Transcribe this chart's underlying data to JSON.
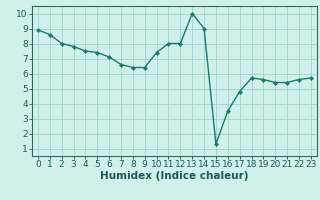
{
  "x": [
    0,
    1,
    2,
    3,
    4,
    5,
    6,
    7,
    8,
    9,
    10,
    11,
    12,
    13,
    14,
    15,
    16,
    17,
    18,
    19,
    20,
    21,
    22,
    23
  ],
  "y": [
    8.9,
    8.6,
    8.0,
    7.8,
    7.5,
    7.4,
    7.1,
    6.6,
    6.4,
    6.4,
    7.4,
    8.0,
    8.0,
    10.0,
    9.0,
    1.3,
    3.5,
    4.8,
    5.7,
    5.6,
    5.4,
    5.4,
    5.6,
    5.7
  ],
  "xlabel": "Humidex (Indice chaleur)",
  "xlim": [
    -0.5,
    23.5
  ],
  "ylim": [
    0.5,
    10.5
  ],
  "yticks": [
    1,
    2,
    3,
    4,
    5,
    6,
    7,
    8,
    9,
    10
  ],
  "xticks": [
    0,
    1,
    2,
    3,
    4,
    5,
    6,
    7,
    8,
    9,
    10,
    11,
    12,
    13,
    14,
    15,
    16,
    17,
    18,
    19,
    20,
    21,
    22,
    23
  ],
  "line_color": "#1a7a6e",
  "marker": "D",
  "marker_size": 2.0,
  "bg_color": "#cff0eb",
  "grid_color": "#99cccc",
  "font_color": "#1a5a5a",
  "xlabel_fontsize": 7.5,
  "tick_fontsize": 6.5,
  "spine_color": "#336666"
}
